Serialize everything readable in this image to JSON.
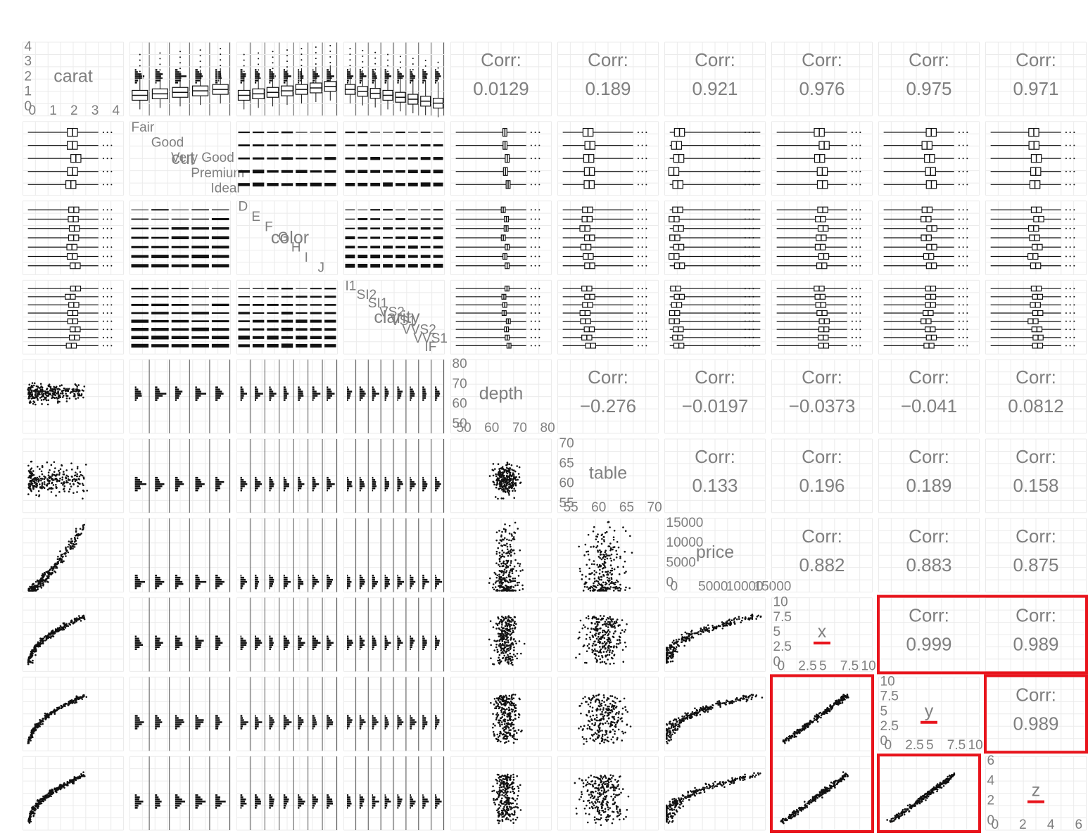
{
  "chart_data": {
    "type": "scatter-matrix",
    "title": "",
    "variables": [
      "carat",
      "cut",
      "color",
      "clarity",
      "depth",
      "table",
      "price",
      "x",
      "y",
      "z"
    ],
    "variable_kind": {
      "carat": "continuous",
      "cut": "categorical",
      "color": "categorical",
      "clarity": "categorical",
      "depth": "continuous",
      "table": "continuous",
      "price": "continuous",
      "x": "continuous",
      "y": "continuous",
      "z": "continuous"
    },
    "levels": {
      "cut": [
        "Fair",
        "Good",
        "Very Good",
        "Premium",
        "Ideal"
      ],
      "color": [
        "D",
        "E",
        "F",
        "G",
        "H",
        "I",
        "J"
      ],
      "clarity": [
        "I1",
        "SI2",
        "SI1",
        "VS2",
        "VS1",
        "VVS2",
        "VVS1",
        "IF"
      ]
    },
    "diag_ticks": {
      "carat": {
        "range": [
          0,
          4.5
        ],
        "ticks": [
          "0",
          "1",
          "2",
          "3",
          "4"
        ]
      },
      "depth": {
        "range": [
          45,
          82
        ],
        "ticks": [
          "50",
          "60",
          "70",
          "80"
        ]
      },
      "table": {
        "range": [
          50,
          75
        ],
        "ticks": [
          "55",
          "60",
          "65",
          "70"
        ]
      },
      "price": {
        "range": [
          0,
          19000
        ],
        "ticks": [
          "0",
          "5000",
          "10000",
          "15000"
        ]
      },
      "x": {
        "range": [
          0,
          11
        ],
        "ticks": [
          "0",
          "2.5",
          "5",
          "7.5",
          "10"
        ]
      },
      "y": {
        "range": [
          0,
          11
        ],
        "ticks": [
          "0",
          "2.5",
          "5",
          "7.5",
          "10"
        ]
      },
      "z": {
        "range": [
          0,
          7
        ],
        "ticks": [
          "0",
          "2",
          "4",
          "6"
        ]
      }
    },
    "corr_label": "Corr:",
    "correlations": [
      {
        "row": "carat",
        "col": "depth",
        "value": "0.0129"
      },
      {
        "row": "carat",
        "col": "table",
        "value": "0.189"
      },
      {
        "row": "carat",
        "col": "price",
        "value": "0.921"
      },
      {
        "row": "carat",
        "col": "x",
        "value": "0.976"
      },
      {
        "row": "carat",
        "col": "y",
        "value": "0.975"
      },
      {
        "row": "carat",
        "col": "z",
        "value": "0.971"
      },
      {
        "row": "depth",
        "col": "table",
        "value": "−0.276"
      },
      {
        "row": "depth",
        "col": "price",
        "value": "−0.0197"
      },
      {
        "row": "depth",
        "col": "x",
        "value": "−0.0373"
      },
      {
        "row": "depth",
        "col": "y",
        "value": "−0.041"
      },
      {
        "row": "depth",
        "col": "z",
        "value": "0.0812"
      },
      {
        "row": "table",
        "col": "price",
        "value": "0.133"
      },
      {
        "row": "table",
        "col": "x",
        "value": "0.196"
      },
      {
        "row": "table",
        "col": "y",
        "value": "0.189"
      },
      {
        "row": "table",
        "col": "z",
        "value": "0.158"
      },
      {
        "row": "price",
        "col": "x",
        "value": "0.882"
      },
      {
        "row": "price",
        "col": "y",
        "value": "0.883"
      },
      {
        "row": "price",
        "col": "z",
        "value": "0.875"
      },
      {
        "row": "x",
        "col": "y",
        "value": "0.999"
      },
      {
        "row": "x",
        "col": "z",
        "value": "0.989"
      },
      {
        "row": "y",
        "col": "z",
        "value": "0.989"
      }
    ],
    "highlights": {
      "color": "#e8141c",
      "boxes": [
        {
          "rows": [
            "x",
            "x"
          ],
          "cols": [
            "y",
            "z"
          ]
        },
        {
          "rows": [
            "y",
            "y"
          ],
          "cols": [
            "z",
            "z"
          ]
        },
        {
          "rows": [
            "y",
            "z"
          ],
          "cols": [
            "x",
            "x"
          ]
        },
        {
          "rows": [
            "z",
            "z"
          ],
          "cols": [
            "y",
            "y"
          ]
        }
      ],
      "underlined_diag": [
        "x",
        "y",
        "z"
      ]
    },
    "grid": true,
    "legend": "none"
  },
  "colors": {
    "panel_grid": "#ebebeb",
    "text": "#7f7f7f",
    "ink": "#111111",
    "highlight": "#e8141c"
  }
}
